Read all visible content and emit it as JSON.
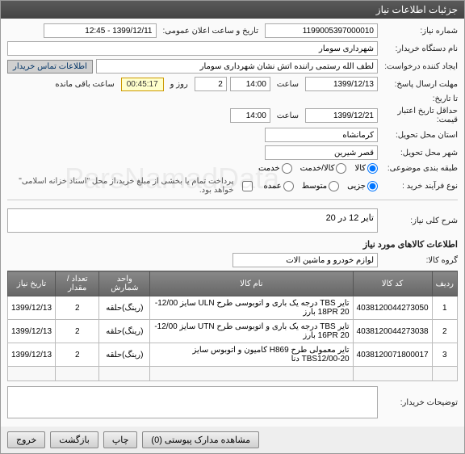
{
  "header": {
    "title": "جزئیات اطلاعات نیاز"
  },
  "form": {
    "need_no_label": "شماره نیاز:",
    "need_no": "1199005397000010",
    "announce_label": "تاریخ و ساعت اعلان عمومی:",
    "announce_value": "1399/12/11 - 12:45",
    "buyer_label": "نام دستگاه خریدار:",
    "buyer": "شهرداری سومار",
    "creator_label": "ایجاد کننده درخواست:",
    "creator": "لطف الله رستمی راننده اتش نشان شهرداری سومار",
    "contact_btn": "اطلاعات تماس خریدار",
    "deadline_send_label": "مهلت ارسال پاسخ:",
    "until_label": "تا تاریخ:",
    "date1": "1399/12/13",
    "time_lbl": "ساعت",
    "time1": "14:00",
    "day_lbl": "روز و",
    "days": "2",
    "remain_time": "00:45:17",
    "remain_lbl": "ساعت باقی مانده",
    "min_valid_label": "حداقل تاریخ اعتبار قیمت:",
    "date2": "1399/12/21",
    "time2": "14:00",
    "province_label": "استان محل تحویل:",
    "province": "کرمانشاه",
    "city_label": "شهر محل تحویل:",
    "city": "قصر شیرین",
    "budget_label": "طبقه بندی موضوعی:",
    "budget_opts": {
      "goods": "کالا",
      "goods_service": "کالا/خدمت",
      "service": "خدمت"
    },
    "process_label": "نوع فرآیند خرید :",
    "process_opts": {
      "low": "جزیی",
      "mid": "متوسط",
      "high": "عمده"
    },
    "pay_note": "پرداخت تمام یا بخشی از مبلغ خرید،از محل \"اسناد خزانه اسلامی\" خواهد بود.",
    "desc_title_label": "شرح کلی نیاز:",
    "desc_title": "تایر 12 در 20",
    "items_title": "اطلاعات کالاهای مورد نیاز",
    "group_label": "گروه کالا:",
    "group": "لوازم خودرو و ماشین آلات"
  },
  "table": {
    "headers": {
      "row": "ردیف",
      "code": "کد کالا",
      "name": "نام کالا",
      "unit": "واحد شمارش",
      "qty": "تعداد / مقدار",
      "date": "تاریخ نیاز"
    },
    "rows": [
      {
        "n": "1",
        "code": "4038120044273050",
        "name": "تایر TBS درجه یک باری و اتوبوسی طرح ULN سایز 12/00-20 18PR بارز",
        "unit": "(رینگ)حلقه",
        "qty": "2",
        "date": "1399/12/13"
      },
      {
        "n": "2",
        "code": "4038120044273038",
        "name": "تایر TBS درجه یک باری و اتوبوسی طرح UTN سایز 12/00-20 16PR بارز",
        "unit": "(رینگ)حلقه",
        "qty": "2",
        "date": "1399/12/13"
      },
      {
        "n": "3",
        "code": "4038120071800017",
        "name": "تایر معمولی طرح H869 کامیون و اتوبوس سایز TBS12/00-20 دنا",
        "unit": "(رینگ)حلقه",
        "qty": "2",
        "date": "1399/12/13"
      }
    ]
  },
  "buyer_notes_label": "توضیحات خریدار:",
  "footer": {
    "attachments": "مشاهده مدارک پیوستی  (0)",
    "print": "چاپ",
    "back": "بازگشت",
    "exit": "خروج"
  }
}
